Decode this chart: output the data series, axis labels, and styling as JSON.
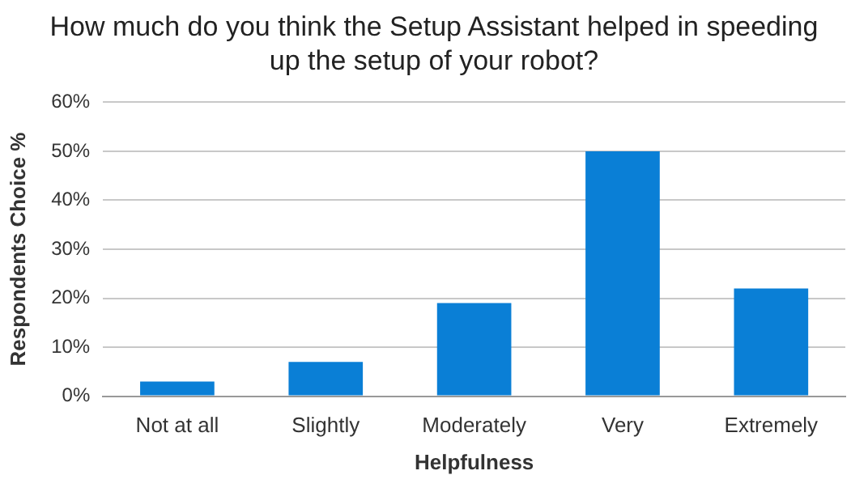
{
  "chart_data": {
    "type": "bar",
    "title": "How much do you think the Setup Assistant helped in speeding up the setup of your robot?",
    "xlabel": "Helpfulness",
    "ylabel": "Respondents Choice %",
    "categories": [
      "Not at all",
      "Slightly",
      "Moderately",
      "Very",
      "Extremely"
    ],
    "values": [
      3,
      7,
      19,
      50,
      22
    ],
    "color": "#0a7fd6",
    "ylim": [
      0,
      60
    ],
    "yticks": [
      {
        "value": 0,
        "label": "0%"
      },
      {
        "value": 10,
        "label": "10%"
      },
      {
        "value": 20,
        "label": "20%"
      },
      {
        "value": 30,
        "label": "30%"
      },
      {
        "value": 40,
        "label": "40%"
      },
      {
        "value": 50,
        "label": "50%"
      },
      {
        "value": 60,
        "label": "60%"
      }
    ],
    "grid": "y",
    "legend": false
  }
}
